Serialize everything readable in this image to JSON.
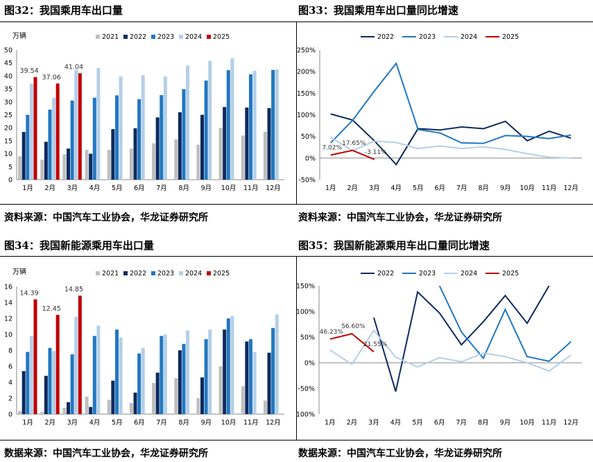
{
  "figures": [
    {
      "title": "图32：我国乘用车出口量",
      "source": "资料来源：中国汽车工业协会，华龙证券研究所"
    },
    {
      "title": "图33：我国乘用车出口量同比增速",
      "source": "资料来源：中国汽车工业协会，华龙证券研究所"
    },
    {
      "title": "图34：我国新能源乘用车出口量",
      "source": "数据来源：中国汽车工业协会，华龙证券研究所"
    },
    {
      "title": "图35：我国新能源乘用车出口量同比增速",
      "source": "数据来源：中国汽车工业协会，华龙证券研究所"
    }
  ],
  "chart_data": [
    {
      "type": "bar",
      "unit": "万辆",
      "categories": [
        "1月",
        "2月",
        "3月",
        "4月",
        "5月",
        "6月",
        "7月",
        "8月",
        "9月",
        "10月",
        "11月",
        "12月"
      ],
      "ylim": [
        0,
        50
      ],
      "yticks": [
        0,
        5,
        10,
        15,
        20,
        25,
        30,
        35,
        40,
        45,
        50
      ],
      "legend_position": "top",
      "series": [
        {
          "name": "2021",
          "color": "#bfbfbf",
          "values": [
            9.0,
            7.7,
            9.8,
            11.5,
            11.5,
            12.0,
            14.0,
            15.5,
            13.5,
            20.0,
            17.0,
            18.5
          ]
        },
        {
          "name": "2022",
          "color": "#0d2a5e",
          "values": [
            18.4,
            14.6,
            12.0,
            10.0,
            19.5,
            19.8,
            24.0,
            26.0,
            25.0,
            28.0,
            27.8,
            27.6
          ]
        },
        {
          "name": "2023",
          "color": "#2277c0",
          "values": [
            25.0,
            27.0,
            30.5,
            31.6,
            32.5,
            31.0,
            32.6,
            34.9,
            38.2,
            42.2,
            40.6,
            42.3
          ]
        },
        {
          "name": "2024",
          "color": "#b4cfe8",
          "values": [
            37.0,
            31.6,
            42.3,
            43.0,
            39.8,
            40.3,
            39.8,
            44.0,
            45.8,
            46.8,
            42.0,
            42.5
          ]
        },
        {
          "name": "2025",
          "color": "#c00000",
          "values": [
            39.54,
            37.06,
            41.04,
            null,
            null,
            null,
            null,
            null,
            null,
            null,
            null,
            null
          ]
        }
      ],
      "data_labels": [
        "39.54",
        "37.06",
        "41.04"
      ]
    },
    {
      "type": "line",
      "categories": [
        "1月",
        "2月",
        "3月",
        "4月",
        "5月",
        "6月",
        "7月",
        "8月",
        "9月",
        "10月",
        "11月",
        "12月"
      ],
      "ylim": [
        -50,
        250
      ],
      "yticks": [
        "-50%",
        "0%",
        "50%",
        "100%",
        "150%",
        "200%",
        "250%"
      ],
      "legend_position": "top",
      "series": [
        {
          "name": "2022",
          "color": "#0d2a5e",
          "values": [
            102,
            88,
            40,
            -15,
            68,
            65,
            72,
            68,
            85,
            40,
            62,
            46
          ]
        },
        {
          "name": "2023",
          "color": "#2277c0",
          "values": [
            35,
            87,
            155,
            219,
            66,
            58,
            35,
            34,
            52,
            50,
            45,
            53
          ]
        },
        {
          "name": "2024",
          "color": "#b4cfe8",
          "values": [
            48,
            17,
            39,
            36,
            22,
            28,
            22,
            26,
            20,
            10,
            2,
            0
          ]
        },
        {
          "name": "2025",
          "color": "#c00000",
          "values": [
            7.02,
            17.65,
            -3.11,
            null,
            null,
            null,
            null,
            null,
            null,
            null,
            null,
            null
          ]
        }
      ],
      "data_labels": [
        "7.02%",
        "17.65%",
        "-3.11%"
      ]
    },
    {
      "type": "bar",
      "unit": "万辆",
      "categories": [
        "1月",
        "2月",
        "3月",
        "4月",
        "5月",
        "6月",
        "7月",
        "8月",
        "9月",
        "10月",
        "11月",
        "12月"
      ],
      "ylim": [
        0,
        16
      ],
      "yticks": [
        0,
        2,
        4,
        6,
        8,
        10,
        12,
        14,
        16
      ],
      "legend_position": "top",
      "series": [
        {
          "name": "2021",
          "color": "#bfbfbf",
          "values": [
            0.4,
            0.3,
            0.8,
            2.2,
            1.8,
            1.4,
            3.9,
            4.5,
            2.0,
            6.0,
            3.5,
            1.7
          ]
        },
        {
          "name": "2022",
          "color": "#0d2a5e",
          "values": [
            5.4,
            4.8,
            1.5,
            0.9,
            4.2,
            2.7,
            5.2,
            8.0,
            4.6,
            10.6,
            9.1,
            7.7
          ]
        },
        {
          "name": "2023",
          "color": "#2277c0",
          "values": [
            7.8,
            8.3,
            7.5,
            9.8,
            10.6,
            7.6,
            9.8,
            8.8,
            9.4,
            12.0,
            9.4,
            10.8
          ]
        },
        {
          "name": "2024",
          "color": "#b4cfe8",
          "values": [
            9.8,
            7.9,
            12.2,
            11.1,
            9.6,
            8.3,
            10.0,
            10.5,
            10.6,
            12.3,
            7.8,
            12.5
          ]
        },
        {
          "name": "2025",
          "color": "#c00000",
          "values": [
            14.39,
            12.45,
            14.85,
            null,
            null,
            null,
            null,
            null,
            null,
            null,
            null,
            null
          ]
        }
      ],
      "data_labels": [
        "14.39",
        "12.45",
        "14.85"
      ]
    },
    {
      "type": "line",
      "categories": [
        "1月",
        "2月",
        "3月",
        "4月",
        "5月",
        "6月",
        "7月",
        "8月",
        "9月",
        "10月",
        "11月",
        "12月"
      ],
      "ylim": [
        -100,
        150
      ],
      "yticks": [
        "-100%",
        "-50%",
        "0%",
        "50%",
        "100%",
        "150%"
      ],
      "legend_position": "top",
      "series": [
        {
          "name": "2022",
          "color": "#0d2a5e",
          "values": [
            null,
            null,
            88,
            -56,
            138,
            97,
            35,
            80,
            131,
            77,
            150,
            null
          ]
        },
        {
          "name": "2023",
          "color": "#2277c0",
          "values": [
            null,
            6,
            null,
            null,
            null,
            150,
            60,
            9,
            104,
            12,
            3,
            41
          ]
        },
        {
          "name": "2024",
          "color": "#b4cfe8",
          "values": [
            25,
            -3,
            63,
            11,
            -8,
            10,
            2,
            19,
            12,
            0,
            -16,
            15
          ]
        },
        {
          "name": "2025",
          "color": "#c00000",
          "values": [
            46.23,
            56.6,
            21.55,
            null,
            null,
            null,
            null,
            null,
            null,
            null,
            null,
            null
          ]
        }
      ],
      "data_labels": [
        "46.23%",
        "56.60%",
        "21.55%"
      ]
    }
  ]
}
